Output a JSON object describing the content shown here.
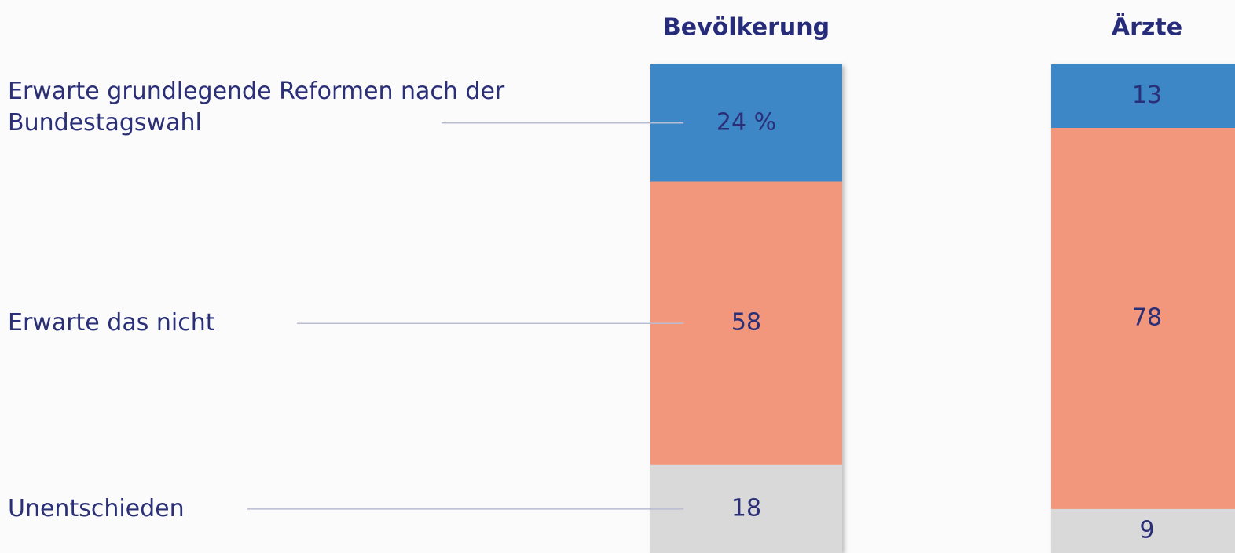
{
  "chart_data": {
    "type": "stacked_bar",
    "categories": [
      "Bevölkerung",
      "Ärzte"
    ],
    "series": [
      {
        "name": "Erwarte grundlegende Reformen nach der Bundestagswahl",
        "color": "#3c87c7",
        "values": [
          24,
          13
        ],
        "value_labels": [
          "24 %",
          "13"
        ]
      },
      {
        "name": "Erwarte das nicht",
        "color": "#f2977b",
        "values": [
          58,
          78
        ]
      },
      {
        "name": "Unentschieden",
        "color": "#d9d9d9",
        "values": [
          18,
          9
        ]
      }
    ],
    "ylim": [
      0,
      100
    ]
  }
}
